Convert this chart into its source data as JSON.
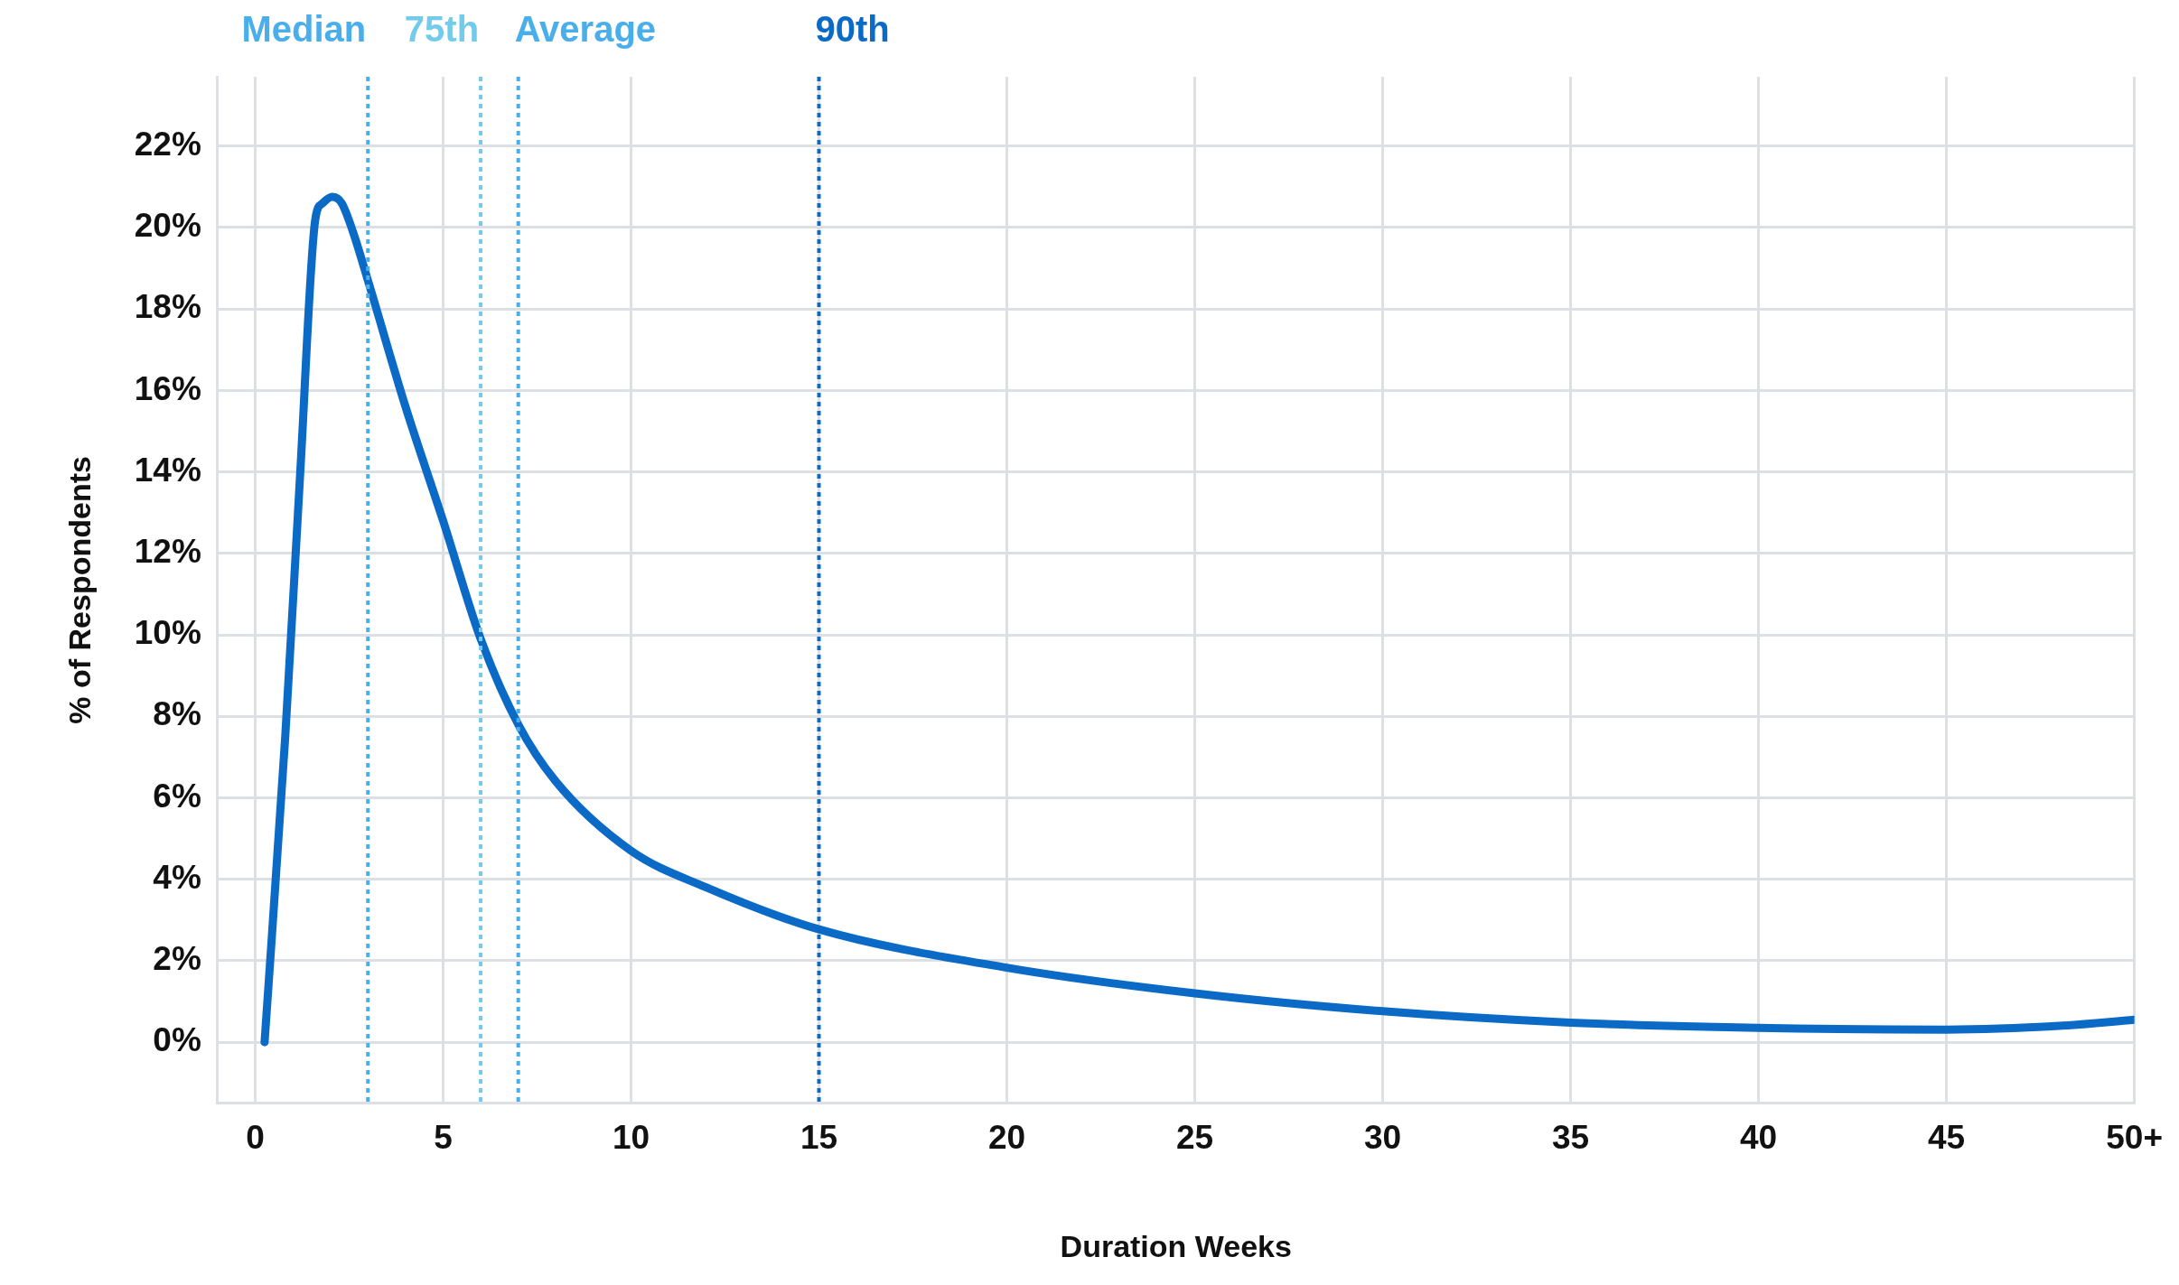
{
  "chart_data": {
    "type": "line",
    "xlabel": "Duration Weeks",
    "ylabel": "% of Respondents",
    "x": [
      0.25,
      0.8,
      1.2,
      1.6,
      1.8,
      2.05,
      2.3,
      2.6,
      3,
      4,
      5,
      6,
      7,
      8,
      10,
      12,
      15,
      20,
      25,
      30,
      35,
      40,
      45,
      48,
      50
    ],
    "series": [
      {
        "color": "#0a6ac6",
        "values": [
          0,
          7.5,
          14,
          20.2,
          20.6,
          20.75,
          20.6,
          19.9,
          18.7,
          15.6,
          12.8,
          9.9,
          7.8,
          6.4,
          4.7,
          3.8,
          2.77,
          1.83,
          1.2,
          0.76,
          0.48,
          0.35,
          0.31,
          0.4,
          0.55
        ]
      }
    ],
    "xlim": [
      -1,
      50
    ],
    "xticks": [
      0,
      5,
      10,
      15,
      20,
      25,
      30,
      35,
      40,
      45,
      {
        "value": 50,
        "label": "50+"
      }
    ],
    "ylim": [
      -1.5,
      23.7
    ],
    "yticks": [
      {
        "value": 0,
        "label": "0%"
      },
      {
        "value": 2,
        "label": "2%"
      },
      {
        "value": 4,
        "label": "4%"
      },
      {
        "value": 6,
        "label": "6%"
      },
      {
        "value": 8,
        "label": "8%"
      },
      {
        "value": 10,
        "label": "10%"
      },
      {
        "value": 12,
        "label": "12%"
      },
      {
        "value": 14,
        "label": "14%"
      },
      {
        "value": 16,
        "label": "16%"
      },
      {
        "value": 18,
        "label": "18%"
      },
      {
        "value": 20,
        "label": "20%"
      },
      {
        "value": 22,
        "label": "22%"
      }
    ],
    "ref_lines": [
      {
        "axis": "x",
        "value": 3,
        "label": "Median",
        "color": "#4aaeea",
        "line_style": "dotted"
      },
      {
        "axis": "x",
        "value": 6,
        "label": "75th",
        "color": "#72cbea",
        "line_style": "dotted"
      },
      {
        "axis": "x",
        "value": 7,
        "label": "Average",
        "color": "#4aaeea",
        "line_style": "dotted"
      },
      {
        "axis": "x",
        "value": 15,
        "label": "90th",
        "color": "#0a6ac6",
        "line_style": "dotted"
      }
    ],
    "grid": true,
    "legend": false,
    "marker": "none",
    "line_style": "solid"
  }
}
